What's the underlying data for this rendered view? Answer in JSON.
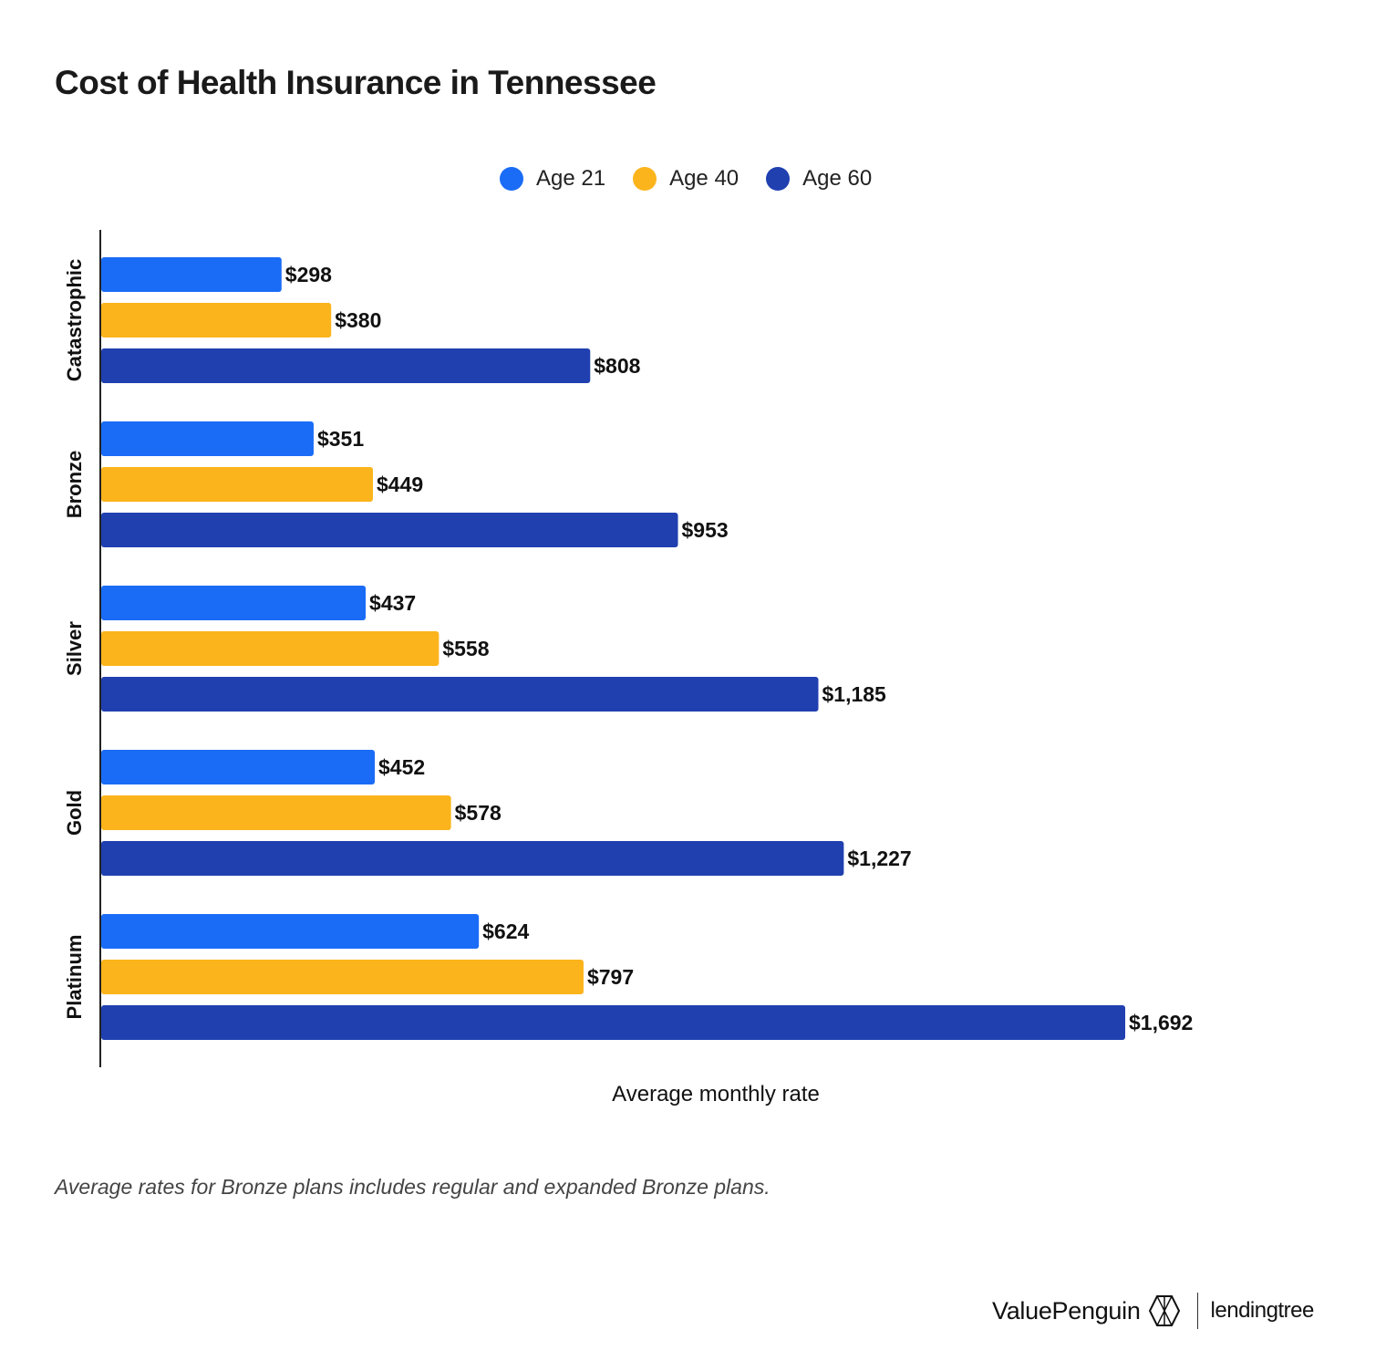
{
  "title": "Cost of Health Insurance in Tennessee",
  "footnote": "Average rates for Bronze plans includes regular and expanded Bronze plans.",
  "brand": {
    "valuepenguin": "ValuePenguin",
    "lendingtree": "lendingtree"
  },
  "colors": {
    "age21": "#1a6cf6",
    "age40": "#fbb41c",
    "age60": "#2040b0"
  },
  "chart_data": {
    "type": "bar",
    "orientation": "horizontal",
    "title": "Cost of Health Insurance in Tennessee",
    "xlabel": "Average monthly rate",
    "ylabel": "",
    "categories": [
      "Catastrophic",
      "Bronze",
      "Silver",
      "Gold",
      "Platinum"
    ],
    "series": [
      {
        "name": "Age 21",
        "values": [
          298,
          351,
          437,
          452,
          624
        ],
        "labels": [
          "$298",
          "$351",
          "$437",
          "$452",
          "$624"
        ]
      },
      {
        "name": "Age 40",
        "values": [
          380,
          449,
          558,
          578,
          797
        ],
        "labels": [
          "$380",
          "$449",
          "$558",
          "$578",
          "$797"
        ]
      },
      {
        "name": "Age 60",
        "values": [
          808,
          953,
          1185,
          1227,
          1692
        ],
        "labels": [
          "$808",
          "$953",
          "$1,185",
          "$1,227",
          "$1,692"
        ]
      }
    ],
    "xlim": [
      0,
      1692
    ],
    "legend": "top-center",
    "grid": false
  }
}
